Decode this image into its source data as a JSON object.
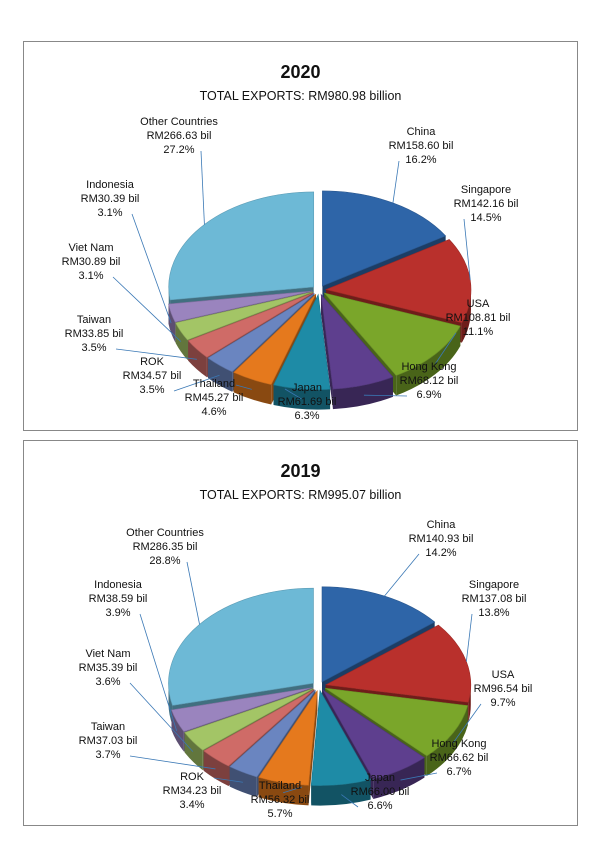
{
  "chart_data": [
    {
      "type": "pie",
      "title": "2020",
      "subtitle": "TOTAL EXPORTS: RM980.98  billion",
      "slices": [
        {
          "name": "China",
          "value": 158.6,
          "value_label": "RM158.60 bil",
          "percent_label": "16.2%",
          "color": "#2e65a8"
        },
        {
          "name": "Singapore",
          "value": 142.16,
          "value_label": "RM142.16 bil",
          "percent_label": "14.5%",
          "color": "#b9302c"
        },
        {
          "name": "USA",
          "value": 108.81,
          "value_label": "RM108.81 bil",
          "percent_label": "11.1%",
          "color": "#7aa62a"
        },
        {
          "name": "Hong Kong",
          "value": 68.12,
          "value_label": "RM68.12 bil",
          "percent_label": "6.9%",
          "color": "#5e3f8e"
        },
        {
          "name": "Japan",
          "value": 61.69,
          "value_label": "RM61.69 bil",
          "percent_label": "6.3%",
          "color": "#1e8ba6"
        },
        {
          "name": "Thailand",
          "value": 45.27,
          "value_label": "RM45.27 bil",
          "percent_label": "4.6%",
          "color": "#e5791d"
        },
        {
          "name": "ROK",
          "value": 34.57,
          "value_label": "RM34.57 bil",
          "percent_label": "3.5%",
          "color": "#6a85c0"
        },
        {
          "name": "Taiwan",
          "value": 33.85,
          "value_label": "RM33.85 bil",
          "percent_label": "3.5%",
          "color": "#cf6b67"
        },
        {
          "name": "Viet Nam",
          "value": 30.89,
          "value_label": "RM30.89 bil",
          "percent_label": "3.1%",
          "color": "#a3c566"
        },
        {
          "name": "Indonesia",
          "value": 30.39,
          "value_label": "RM30.39 bil",
          "percent_label": "3.1%",
          "color": "#9a84be"
        },
        {
          "name": "Other Countries",
          "value": 266.63,
          "value_label": "RM266.63 bil",
          "percent_label": "27.2%",
          "color": "#6db9d6"
        }
      ]
    },
    {
      "type": "pie",
      "title": "2019",
      "subtitle": "TOTAL EXPORTS: RM995.07  billion",
      "slices": [
        {
          "name": "China",
          "value": 140.93,
          "value_label": "RM140.93 bil",
          "percent_label": "14.2%",
          "color": "#2e65a8"
        },
        {
          "name": "Singapore",
          "value": 137.08,
          "value_label": "RM137.08 bil",
          "percent_label": "13.8%",
          "color": "#b9302c"
        },
        {
          "name": "USA",
          "value": 96.54,
          "value_label": "RM96.54 bil",
          "percent_label": "9.7%",
          "color": "#7aa62a"
        },
        {
          "name": "Hong Kong",
          "value": 66.62,
          "value_label": "RM66.62 bil",
          "percent_label": "6.7%",
          "color": "#5e3f8e"
        },
        {
          "name": "Japan",
          "value": 66.0,
          "value_label": "RM66.00 bil",
          "percent_label": "6.6%",
          "color": "#1e8ba6"
        },
        {
          "name": "Thailand",
          "value": 56.32,
          "value_label": "RM56.32 bil",
          "percent_label": "5.7%",
          "color": "#e5791d"
        },
        {
          "name": "ROK",
          "value": 34.23,
          "value_label": "RM34.23 bil",
          "percent_label": "3.4%",
          "color": "#6a85c0"
        },
        {
          "name": "Taiwan",
          "value": 37.03,
          "value_label": "RM37.03 bil",
          "percent_label": "3.7%",
          "color": "#cf6b67"
        },
        {
          "name": "Viet Nam",
          "value": 35.39,
          "value_label": "RM35.39 bil",
          "percent_label": "3.6%",
          "color": "#a3c566"
        },
        {
          "name": "Indonesia",
          "value": 38.59,
          "value_label": "RM38.59 bil",
          "percent_label": "3.9%",
          "color": "#9a84be"
        },
        {
          "name": "Other Countries",
          "value": 286.35,
          "value_label": "RM286.35 bil",
          "percent_label": "28.8%",
          "color": "#6db9d6"
        }
      ]
    }
  ]
}
